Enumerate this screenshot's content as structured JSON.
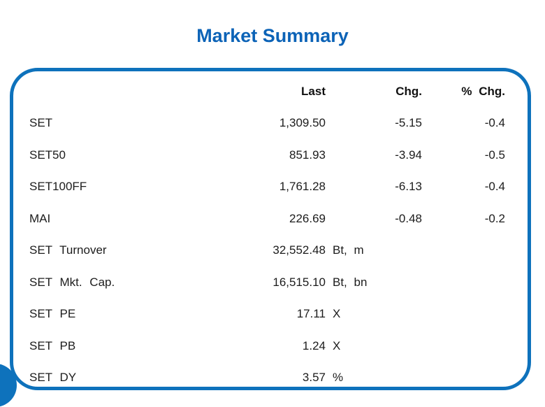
{
  "title": "Market Summary",
  "colors": {
    "accent_border": "#0e72bc",
    "title_blue": "#0c63b7",
    "text": "#1c1c1c"
  },
  "table": {
    "headers": {
      "last": "Last",
      "chg": "Chg.",
      "pct": "% Chg."
    },
    "rows": [
      {
        "label": "SET",
        "value": "1,309.50",
        "unit": "",
        "chg": "-5.15",
        "pct": "-0.4"
      },
      {
        "label": "SET50",
        "value": "851.93",
        "unit": "",
        "chg": "-3.94",
        "pct": "-0.5"
      },
      {
        "label": "SET100FF",
        "value": "1,761.28",
        "unit": "",
        "chg": "-6.13",
        "pct": "-0.4"
      },
      {
        "label": "MAI",
        "value": "226.69",
        "unit": "",
        "chg": "-0.48",
        "pct": "-0.2"
      },
      {
        "label": "SET Turnover",
        "value": "32,552.48",
        "unit": "Bt, m",
        "chg": "",
        "pct": ""
      },
      {
        "label": "SET Mkt. Cap.",
        "value": "16,515.10",
        "unit": "Bt, bn",
        "chg": "",
        "pct": ""
      },
      {
        "label": "SET PE",
        "value": "17.11",
        "unit": "X",
        "chg": "",
        "pct": ""
      },
      {
        "label": "SET PB",
        "value": "1.24",
        "unit": "X",
        "chg": "",
        "pct": ""
      },
      {
        "label": "SET DY",
        "value": "3.57",
        "unit": "%",
        "chg": "",
        "pct": ""
      }
    ]
  }
}
